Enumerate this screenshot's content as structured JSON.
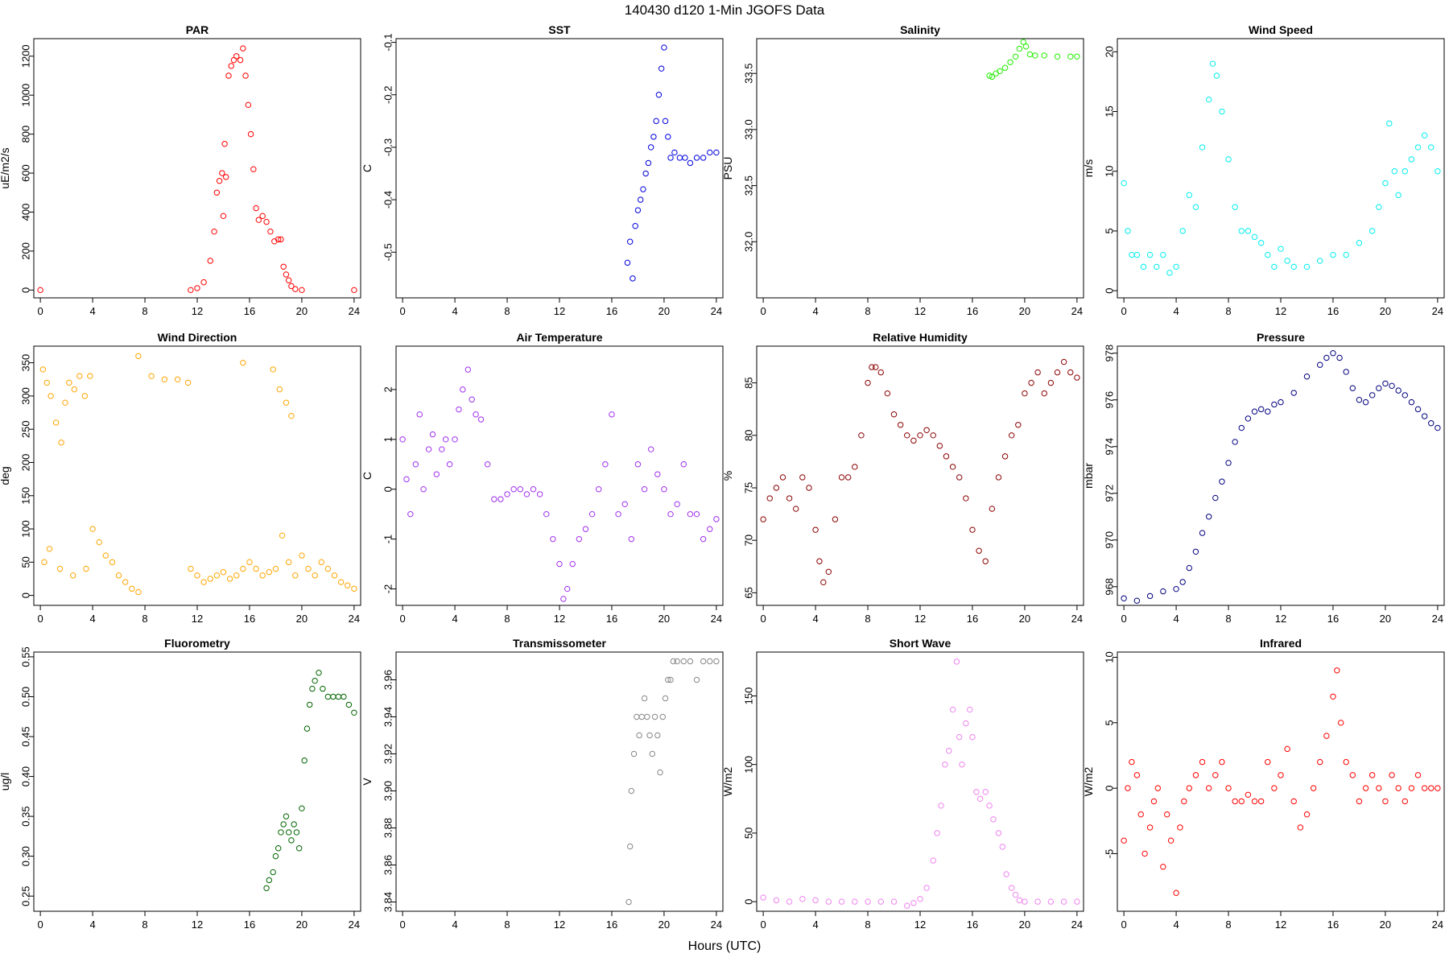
{
  "title": "140430   d120   1-Min  JGOFS Data",
  "x_axis_title": "Hours (UTC)",
  "chart_data": [
    {
      "type": "scatter",
      "title": "PAR",
      "ylabel": "uE/m2/s",
      "color": "#ff0000",
      "xlim": [
        -0.5,
        24.5
      ],
      "ylim": [
        -40,
        1290
      ],
      "xticks": [
        0,
        4,
        8,
        12,
        16,
        20,
        24
      ],
      "yticks": [
        0,
        200,
        400,
        600,
        800,
        1000,
        1200
      ],
      "ytick_labels": [
        "0",
        "200",
        "400",
        "600",
        "800",
        "1000",
        "1200"
      ],
      "x": [
        0,
        11.5,
        12,
        12.5,
        13,
        13.3,
        13.5,
        13.7,
        13.9,
        14.0,
        14.1,
        14.2,
        14.4,
        14.6,
        14.8,
        15,
        15.3,
        15.5,
        15.7,
        15.9,
        16.1,
        16.3,
        16.5,
        16.7,
        17,
        17.3,
        17.6,
        17.9,
        18.2,
        18.4,
        18.6,
        18.8,
        19,
        19.2,
        19.5,
        20,
        24
      ],
      "y": [
        0,
        0,
        10,
        40,
        150,
        300,
        500,
        560,
        600,
        380,
        750,
        580,
        1100,
        1150,
        1180,
        1200,
        1180,
        1240,
        1100,
        950,
        800,
        620,
        420,
        360,
        380,
        350,
        300,
        250,
        260,
        260,
        120,
        80,
        50,
        20,
        5,
        0,
        0
      ]
    },
    {
      "type": "scatter",
      "title": "SST",
      "ylabel": "C",
      "color": "#0000dd",
      "xlim": [
        -0.5,
        24.5
      ],
      "ylim": [
        -0.587,
        -0.093
      ],
      "xticks": [
        0,
        4,
        8,
        12,
        16,
        20,
        24
      ],
      "yticks": [
        -0.5,
        -0.4,
        -0.3,
        -0.2,
        -0.1
      ],
      "ytick_labels": [
        "-0.5",
        "-0.4",
        "-0.3",
        "-0.2",
        "-0.1"
      ],
      "x": [
        17.2,
        17.4,
        17.6,
        17.8,
        18.0,
        18.2,
        18.4,
        18.6,
        18.8,
        19.0,
        19.2,
        19.4,
        19.6,
        19.8,
        20.0,
        20.1,
        20.3,
        20.5,
        20.8,
        21.2,
        21.6,
        22.0,
        22.5,
        23.0,
        23.5,
        24.0
      ],
      "y": [
        -0.52,
        -0.48,
        -0.55,
        -0.45,
        -0.42,
        -0.4,
        -0.38,
        -0.35,
        -0.33,
        -0.3,
        -0.28,
        -0.25,
        -0.2,
        -0.15,
        -0.11,
        -0.25,
        -0.28,
        -0.32,
        -0.31,
        -0.32,
        -0.32,
        -0.33,
        -0.32,
        -0.32,
        -0.31,
        -0.31
      ]
    },
    {
      "type": "scatter",
      "title": "Salinity",
      "ylabel": "PSU",
      "color": "#22ee00",
      "xlim": [
        -0.5,
        24.5
      ],
      "ylim": [
        31.5,
        33.81
      ],
      "xticks": [
        0,
        4,
        8,
        12,
        16,
        20,
        24
      ],
      "yticks": [
        32.0,
        32.5,
        33.0,
        33.5
      ],
      "ytick_labels": [
        "32.0",
        "32.5",
        "33.0",
        "33.5"
      ],
      "x": [
        17.3,
        17.5,
        17.8,
        18.1,
        18.5,
        18.9,
        19.3,
        19.6,
        19.9,
        20.1,
        20.4,
        20.8,
        21.5,
        22.5,
        23.5,
        24.0
      ],
      "y": [
        33.48,
        33.47,
        33.5,
        33.52,
        33.55,
        33.6,
        33.65,
        33.72,
        33.78,
        33.74,
        33.67,
        33.66,
        33.66,
        33.65,
        33.65,
        33.65
      ]
    },
    {
      "type": "scatter",
      "title": "Wind Speed",
      "ylabel": "m/s",
      "color": "#00eeee",
      "xlim": [
        -0.5,
        24.5
      ],
      "ylim": [
        -0.6,
        21.1
      ],
      "xticks": [
        0,
        4,
        8,
        12,
        16,
        20,
        24
      ],
      "yticks": [
        0,
        5,
        10,
        15,
        20
      ],
      "ytick_labels": [
        "0",
        "5",
        "10",
        "15",
        "20"
      ],
      "x": [
        0,
        0.3,
        0.6,
        1,
        1.5,
        2,
        2.5,
        3,
        3.5,
        4,
        4.5,
        5,
        5.5,
        6,
        6.5,
        6.8,
        7.1,
        7.5,
        8,
        8.5,
        9,
        9.5,
        10,
        10.5,
        11,
        11.5,
        12,
        12.5,
        13,
        14,
        15,
        16,
        17,
        18,
        19,
        19.5,
        20,
        20.3,
        20.7,
        21,
        21.5,
        22,
        22.5,
        23,
        23.5,
        24
      ],
      "y": [
        9,
        5,
        3,
        3,
        2,
        3,
        2,
        3,
        1.5,
        2,
        5,
        8,
        7,
        12,
        16,
        19,
        18,
        15,
        11,
        7,
        5,
        5,
        4.5,
        4,
        3,
        2,
        3.5,
        2.5,
        2,
        2,
        2.5,
        3,
        3,
        4,
        5,
        7,
        9,
        14,
        10,
        8,
        10,
        11,
        12,
        13,
        12,
        10
      ]
    },
    {
      "type": "scatter",
      "title": "Wind Direction",
      "ylabel": "deg",
      "color": "#ffa500",
      "xlim": [
        -0.5,
        24.5
      ],
      "ylim": [
        -15,
        375
      ],
      "xticks": [
        0,
        4,
        8,
        12,
        16,
        20,
        24
      ],
      "yticks": [
        0,
        50,
        100,
        150,
        200,
        250,
        300,
        350
      ],
      "ytick_labels": [
        "0",
        "50",
        "100",
        "150",
        "200",
        "250",
        "300",
        "350"
      ],
      "x": [
        0.2,
        0.5,
        0.8,
        1.2,
        1.6,
        1.9,
        2.2,
        2.6,
        3,
        3.4,
        3.8,
        0.3,
        0.7,
        1.5,
        2.5,
        3.5,
        4,
        4.5,
        5,
        5.5,
        6,
        6.5,
        7,
        7.5,
        7.5,
        8.5,
        9.5,
        10.5,
        11.3,
        11.5,
        12,
        12.5,
        13,
        13.5,
        14,
        14.5,
        15,
        15.5,
        16,
        16.5,
        17,
        17.5,
        18,
        18.5,
        19,
        19.5,
        20,
        20.5,
        21,
        21.5,
        22,
        22.5,
        23,
        23.5,
        24,
        15.5,
        17.8,
        18.3,
        18.8,
        19.2
      ],
      "y": [
        340,
        320,
        300,
        260,
        230,
        290,
        320,
        310,
        330,
        300,
        330,
        50,
        70,
        40,
        30,
        40,
        100,
        80,
        60,
        50,
        30,
        20,
        10,
        5,
        360,
        330,
        325,
        325,
        320,
        40,
        30,
        20,
        25,
        30,
        35,
        25,
        30,
        40,
        50,
        40,
        30,
        35,
        40,
        90,
        50,
        30,
        60,
        40,
        30,
        50,
        40,
        30,
        20,
        15,
        10,
        350,
        340,
        310,
        290,
        270
      ]
    },
    {
      "type": "scatter",
      "title": "Air Temperature",
      "ylabel": "C",
      "color": "#a030f0",
      "xlim": [
        -0.5,
        24.5
      ],
      "ylim": [
        -2.33,
        2.87
      ],
      "xticks": [
        0,
        4,
        8,
        12,
        16,
        20,
        24
      ],
      "yticks": [
        -2,
        -1,
        0,
        1,
        2
      ],
      "ytick_labels": [
        "-2",
        "-1",
        "0",
        "1",
        "2"
      ],
      "x": [
        0,
        0.3,
        0.6,
        1,
        1.3,
        1.6,
        2,
        2.3,
        2.6,
        3,
        3.3,
        3.6,
        4,
        4.3,
        4.6,
        5,
        5.3,
        5.6,
        6,
        6.5,
        7,
        7.5,
        8,
        8.5,
        9,
        9.5,
        10,
        10.5,
        11,
        11.5,
        12,
        12.3,
        12.6,
        13,
        13.5,
        14,
        14.5,
        15,
        15.5,
        16,
        16.5,
        17,
        17.5,
        18,
        18.5,
        19,
        19.5,
        20,
        20.5,
        21,
        21.5,
        22,
        22.5,
        23,
        23.5,
        24
      ],
      "y": [
        1.0,
        0.2,
        -0.5,
        0.5,
        1.5,
        0.0,
        0.8,
        1.1,
        0.3,
        0.8,
        1.0,
        0.5,
        1.0,
        1.6,
        2.0,
        2.4,
        1.8,
        1.5,
        1.4,
        0.5,
        -0.2,
        -0.2,
        -0.1,
        0.0,
        0.0,
        -0.1,
        0.0,
        -0.1,
        -0.5,
        -1.0,
        -1.5,
        -2.2,
        -2.0,
        -1.5,
        -1.0,
        -0.8,
        -0.5,
        0.0,
        0.5,
        1.5,
        -0.5,
        -0.3,
        -1.0,
        0.5,
        0.0,
        0.8,
        0.3,
        0.0,
        -0.5,
        -0.3,
        0.5,
        -0.5,
        -0.5,
        -1.0,
        -0.8,
        -0.6
      ]
    },
    {
      "type": "scatter",
      "title": "Relative Humidity",
      "ylabel": "%",
      "color": "#8b0000",
      "xlim": [
        -0.5,
        24.5
      ],
      "ylim": [
        63.8,
        88.5
      ],
      "xticks": [
        0,
        4,
        8,
        12,
        16,
        20,
        24
      ],
      "yticks": [
        65,
        70,
        75,
        80,
        85
      ],
      "ytick_labels": [
        "65",
        "70",
        "75",
        "80",
        "85"
      ],
      "x": [
        0,
        0.5,
        1,
        1.5,
        2,
        2.5,
        3,
        3.5,
        4,
        4.3,
        4.6,
        5,
        5.5,
        6,
        6.5,
        7,
        7.5,
        8,
        8.3,
        8.6,
        9,
        9.5,
        10,
        10.5,
        11,
        11.5,
        12,
        12.5,
        13,
        13.5,
        14,
        14.5,
        15,
        15.5,
        16,
        16.5,
        17,
        17.5,
        18,
        18.5,
        19,
        19.5,
        20,
        20.5,
        21,
        21.5,
        22,
        22.5,
        23,
        23.5,
        24
      ],
      "y": [
        72,
        74,
        75,
        76,
        74,
        73,
        76,
        75,
        71,
        68,
        66,
        67,
        72,
        76,
        76,
        77,
        80,
        85,
        86.5,
        86.5,
        86,
        84,
        82,
        81,
        80,
        79.5,
        80,
        80.5,
        80,
        79,
        78,
        77,
        76,
        74,
        71,
        69,
        68,
        73,
        76,
        78,
        80,
        81,
        84,
        85,
        86,
        84,
        85,
        86,
        87,
        86,
        85.5
      ]
    },
    {
      "type": "scatter",
      "title": "Pressure",
      "ylabel": "mbar",
      "color": "#00007f",
      "xlim": [
        -0.5,
        24.5
      ],
      "ylim": [
        967.2,
        978.3
      ],
      "xticks": [
        0,
        4,
        8,
        12,
        16,
        20,
        24
      ],
      "yticks": [
        968,
        970,
        972,
        974,
        976,
        978
      ],
      "ytick_labels": [
        "968",
        "970",
        "972",
        "974",
        "976",
        "978"
      ],
      "x": [
        0,
        1,
        2,
        3,
        4,
        4.5,
        5,
        5.5,
        6,
        6.5,
        7,
        7.5,
        8,
        8.5,
        9,
        9.5,
        10,
        10.5,
        11,
        11.5,
        12,
        13,
        14,
        15,
        15.5,
        16,
        16.5,
        17,
        17.5,
        18,
        18.5,
        19,
        19.5,
        20,
        20.5,
        21,
        21.5,
        22,
        22.5,
        23,
        23.5,
        24
      ],
      "y": [
        967.5,
        967.4,
        967.6,
        967.8,
        967.9,
        968.2,
        968.8,
        969.5,
        970.3,
        971.0,
        971.8,
        972.5,
        973.3,
        974.2,
        974.8,
        975.2,
        975.5,
        975.6,
        975.5,
        975.8,
        975.9,
        976.3,
        977.0,
        977.5,
        977.8,
        978.0,
        977.8,
        977.2,
        976.5,
        976.0,
        975.9,
        976.2,
        976.5,
        976.7,
        976.6,
        976.4,
        976.2,
        975.9,
        975.6,
        975.3,
        975.0,
        974.8
      ]
    },
    {
      "type": "scatter",
      "title": "Fluorometry",
      "ylabel": "ug/l",
      "color": "#006400",
      "xlim": [
        -0.5,
        24.5
      ],
      "ylim": [
        0.231,
        0.556
      ],
      "xticks": [
        0,
        4,
        8,
        12,
        16,
        20,
        24
      ],
      "yticks": [
        0.25,
        0.3,
        0.35,
        0.4,
        0.45,
        0.5,
        0.55
      ],
      "ytick_labels": [
        "0.25",
        "0.30",
        "0.35",
        "0.40",
        "0.45",
        "0.50",
        "0.55"
      ],
      "x": [
        17.3,
        17.5,
        17.8,
        18.0,
        18.2,
        18.4,
        18.6,
        18.8,
        19.0,
        19.2,
        19.4,
        19.6,
        19.8,
        20.0,
        20.2,
        20.4,
        20.6,
        20.8,
        21.0,
        21.3,
        21.6,
        22.0,
        22.4,
        22.8,
        23.2,
        23.6,
        24.0
      ],
      "y": [
        0.26,
        0.27,
        0.28,
        0.3,
        0.31,
        0.33,
        0.34,
        0.35,
        0.33,
        0.32,
        0.34,
        0.33,
        0.31,
        0.36,
        0.42,
        0.46,
        0.49,
        0.51,
        0.52,
        0.53,
        0.51,
        0.5,
        0.5,
        0.5,
        0.5,
        0.49,
        0.48
      ]
    },
    {
      "type": "scatter",
      "title": "Transmissometer",
      "ylabel": "V",
      "color": "#888888",
      "xlim": [
        -0.5,
        24.5
      ],
      "ylim": [
        3.835,
        3.975
      ],
      "xticks": [
        0,
        4,
        8,
        12,
        16,
        20,
        24
      ],
      "yticks": [
        3.84,
        3.86,
        3.88,
        3.9,
        3.92,
        3.94,
        3.96
      ],
      "ytick_labels": [
        "3.84",
        "3.86",
        "3.88",
        "3.90",
        "3.92",
        "3.94",
        "3.96"
      ],
      "x": [
        17.3,
        17.4,
        17.5,
        17.7,
        17.9,
        18.1,
        18.3,
        18.5,
        18.7,
        18.9,
        19.1,
        19.3,
        19.5,
        19.7,
        19.9,
        20.1,
        20.3,
        20.5,
        20.7,
        21.0,
        21.5,
        22.0,
        22.5,
        23.0,
        23.5,
        24.0
      ],
      "y": [
        3.84,
        3.87,
        3.9,
        3.92,
        3.94,
        3.93,
        3.94,
        3.95,
        3.94,
        3.93,
        3.92,
        3.94,
        3.93,
        3.91,
        3.94,
        3.95,
        3.96,
        3.96,
        3.97,
        3.97,
        3.97,
        3.97,
        3.96,
        3.97,
        3.97,
        3.97
      ]
    },
    {
      "type": "scatter",
      "title": "Short Wave",
      "ylabel": "W/m2",
      "color": "#ee82ee",
      "xlim": [
        -0.5,
        24.5
      ],
      "ylim": [
        -7,
        182
      ],
      "xticks": [
        0,
        4,
        8,
        12,
        16,
        20,
        24
      ],
      "yticks": [
        0,
        50,
        100,
        150
      ],
      "ytick_labels": [
        "0",
        "50",
        "100",
        "150"
      ],
      "x": [
        0,
        1,
        2,
        3,
        4,
        5,
        6,
        7,
        8,
        9,
        10,
        11,
        11.5,
        12,
        12.5,
        13,
        13.3,
        13.6,
        13.9,
        14.2,
        14.5,
        14.8,
        15.0,
        15.2,
        15.5,
        15.8,
        16.0,
        16.3,
        16.6,
        17.0,
        17.3,
        17.6,
        18.0,
        18.3,
        18.6,
        19.0,
        19.3,
        19.6,
        20,
        21,
        22,
        23,
        24
      ],
      "y": [
        3,
        1,
        0,
        2,
        1,
        0,
        0,
        0,
        0,
        0,
        0,
        -3,
        -1,
        2,
        10,
        30,
        50,
        70,
        100,
        110,
        140,
        175,
        120,
        100,
        130,
        140,
        120,
        80,
        75,
        80,
        70,
        60,
        50,
        40,
        20,
        10,
        5,
        1,
        0,
        0,
        0,
        0,
        0
      ]
    },
    {
      "type": "scatter",
      "title": "Infrared",
      "ylabel": "W/m2",
      "color": "#ff0000",
      "xlim": [
        -0.5,
        24.5
      ],
      "ylim": [
        -9.4,
        10.4
      ],
      "xticks": [
        0,
        4,
        8,
        12,
        16,
        20,
        24
      ],
      "yticks": [
        -5,
        0,
        5,
        10
      ],
      "ytick_labels": [
        "-5",
        "0",
        "5",
        "10"
      ],
      "x": [
        0,
        0.3,
        0.6,
        1,
        1.3,
        1.6,
        2,
        2.3,
        2.6,
        3,
        3.3,
        3.6,
        4,
        4.3,
        4.6,
        5,
        5.5,
        6,
        6.5,
        7,
        7.5,
        8,
        8.5,
        9,
        9.5,
        10,
        10.5,
        11,
        11.5,
        12,
        12.5,
        13,
        13.5,
        14,
        14.5,
        15,
        15.5,
        16,
        16.3,
        16.6,
        17,
        17.5,
        18,
        18.5,
        19,
        19.5,
        20,
        20.5,
        21,
        21.5,
        22,
        22.5,
        23,
        23.5,
        24
      ],
      "y": [
        -4,
        0,
        2,
        1,
        -2,
        -5,
        -3,
        -1,
        0,
        -6,
        -2,
        -4,
        -8,
        -3,
        -1,
        0,
        1,
        2,
        0,
        1,
        2,
        0,
        -1,
        -1,
        -0.5,
        -1,
        -1,
        2,
        0,
        1,
        3,
        -1,
        -3,
        -2,
        0,
        2,
        4,
        7,
        9,
        5,
        2,
        1,
        -1,
        0,
        1,
        0,
        -1,
        1,
        0,
        -1,
        0,
        1,
        0,
        0,
        0
      ]
    }
  ]
}
